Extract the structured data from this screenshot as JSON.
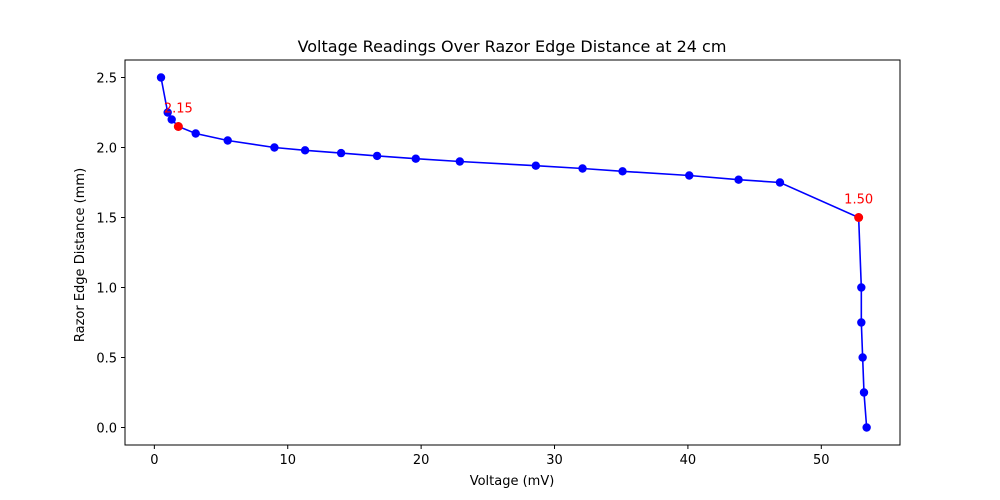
{
  "chart_data": {
    "type": "line",
    "title": "Voltage Readings Over Razor Edge Distance at 24 cm",
    "xlabel": "Voltage (mV)",
    "ylabel": "Razor Edge Distance (mm)",
    "xlim": [
      -2.2,
      55.9
    ],
    "ylim": [
      -0.125,
      2.625
    ],
    "xticks": [
      0,
      10,
      20,
      30,
      40,
      50
    ],
    "yticks": [
      0.0,
      0.5,
      1.0,
      1.5,
      2.0,
      2.5
    ],
    "xtick_labels": [
      "0",
      "10",
      "20",
      "30",
      "40",
      "50"
    ],
    "ytick_labels": [
      "0.0",
      "0.5",
      "1.0",
      "1.5",
      "2.0",
      "2.5"
    ],
    "grid": false,
    "series": [
      {
        "line_color": "#0000ff",
        "marker_color": "#0000ff",
        "points": [
          {
            "x": 0.5,
            "y": 2.5
          },
          {
            "x": 1.0,
            "y": 2.25
          },
          {
            "x": 1.3,
            "y": 2.2
          },
          {
            "x": 1.8,
            "y": 2.15
          },
          {
            "x": 3.1,
            "y": 2.1
          },
          {
            "x": 5.5,
            "y": 2.05
          },
          {
            "x": 9.0,
            "y": 2.0
          },
          {
            "x": 11.3,
            "y": 1.98
          },
          {
            "x": 14.0,
            "y": 1.96
          },
          {
            "x": 16.7,
            "y": 1.94
          },
          {
            "x": 19.6,
            "y": 1.92
          },
          {
            "x": 22.9,
            "y": 1.9
          },
          {
            "x": 28.6,
            "y": 1.87
          },
          {
            "x": 32.1,
            "y": 1.85
          },
          {
            "x": 35.1,
            "y": 1.83
          },
          {
            "x": 40.1,
            "y": 1.8
          },
          {
            "x": 43.8,
            "y": 1.77
          },
          {
            "x": 46.9,
            "y": 1.75
          },
          {
            "x": 52.8,
            "y": 1.5
          },
          {
            "x": 53.0,
            "y": 1.0
          },
          {
            "x": 53.0,
            "y": 0.75
          },
          {
            "x": 53.1,
            "y": 0.5
          },
          {
            "x": 53.2,
            "y": 0.25
          },
          {
            "x": 53.4,
            "y": 0.0
          }
        ]
      }
    ],
    "highlights": [
      {
        "x": 1.8,
        "y": 2.15,
        "label": "2.15",
        "color": "#ff0000"
      },
      {
        "x": 52.8,
        "y": 1.5,
        "label": "1.50",
        "color": "#ff0000"
      }
    ]
  }
}
